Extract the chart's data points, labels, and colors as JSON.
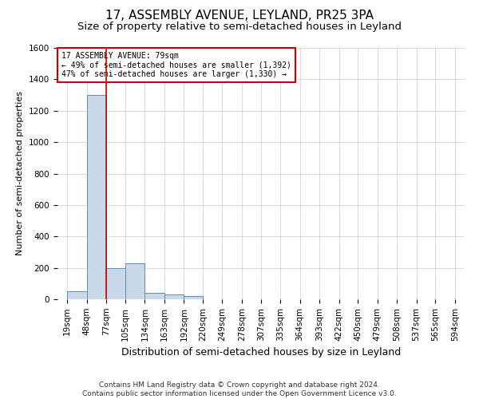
{
  "title": "17, ASSEMBLY AVENUE, LEYLAND, PR25 3PA",
  "subtitle": "Size of property relative to semi-detached houses in Leyland",
  "xlabel": "Distribution of semi-detached houses by size in Leyland",
  "ylabel": "Number of semi-detached properties",
  "footer": "Contains HM Land Registry data © Crown copyright and database right 2024.\nContains public sector information licensed under the Open Government Licence v3.0.",
  "bin_labels": [
    "19sqm",
    "48sqm",
    "77sqm",
    "105sqm",
    "134sqm",
    "163sqm",
    "192sqm",
    "220sqm",
    "249sqm",
    "278sqm",
    "307sqm",
    "335sqm",
    "364sqm",
    "393sqm",
    "422sqm",
    "450sqm",
    "479sqm",
    "508sqm",
    "537sqm",
    "565sqm",
    "594sqm"
  ],
  "bin_edges": [
    19,
    48,
    77,
    105,
    134,
    163,
    192,
    220,
    249,
    278,
    307,
    335,
    364,
    393,
    422,
    450,
    479,
    508,
    537,
    565,
    594
  ],
  "bar_values": [
    50,
    1300,
    200,
    230,
    40,
    30,
    20,
    0,
    0,
    0,
    0,
    0,
    0,
    0,
    0,
    0,
    0,
    0,
    0,
    0
  ],
  "bar_color": "#c9d9ea",
  "bar_edge_color": "#5b8db8",
  "property_line_x": 77,
  "annotation_text_line1": "17 ASSEMBLY AVENUE: 79sqm",
  "annotation_text_line2": "← 49% of semi-detached houses are smaller (1,392)",
  "annotation_text_line3": "47% of semi-detached houses are larger (1,330) →",
  "annotation_box_color": "#cc0000",
  "ylim": [
    0,
    1600
  ],
  "yticks": [
    0,
    200,
    400,
    600,
    800,
    1000,
    1200,
    1400,
    1600
  ],
  "title_fontsize": 11,
  "subtitle_fontsize": 9.5,
  "xlabel_fontsize": 9,
  "ylabel_fontsize": 8,
  "tick_fontsize": 7.5,
  "annot_fontsize": 7,
  "footer_fontsize": 6.5
}
